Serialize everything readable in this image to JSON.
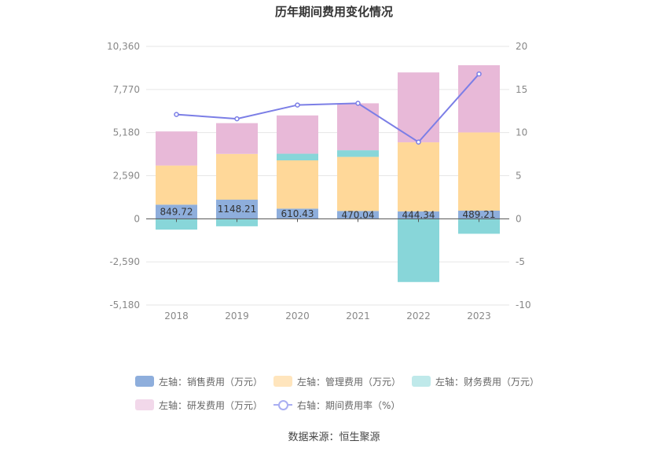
{
  "chart_data": {
    "type": "bar",
    "title": "历年期间费用变化情况",
    "categories": [
      "2018",
      "2019",
      "2020",
      "2021",
      "2022",
      "2023"
    ],
    "left_axis": {
      "ticks": [
        -5180,
        -2590,
        0,
        2590,
        5180,
        7770,
        10360
      ],
      "tick_labels": [
        "-5,180",
        "-2,590",
        "0",
        "2,590",
        "5,180",
        "7,770",
        "10,360"
      ],
      "range": [
        -5180,
        10360
      ]
    },
    "right_axis": {
      "ticks": [
        -10,
        -5,
        0,
        5,
        10,
        15,
        20
      ],
      "tick_labels": [
        "-10",
        "-5",
        "0",
        "5",
        "10",
        "15",
        "20"
      ],
      "range": [
        -10,
        20
      ]
    },
    "series": [
      {
        "name": "左轴：销售费用（万元）",
        "color": "#8eaedc",
        "values": [
          849.72,
          1148.21,
          610.43,
          470.04,
          444.34,
          489.21
        ],
        "labels": [
          "849.72",
          "1148.21",
          "610.43",
          "470.04",
          "444.34",
          "489.21"
        ]
      },
      {
        "name": "左轴：管理费用（万元）",
        "color": "#ffd899",
        "values": [
          2350,
          2750,
          2900,
          3250,
          4150,
          4700
        ]
      },
      {
        "name": "左轴：财务费用（万元）",
        "color": "#88d6d9",
        "values": [
          -650,
          -450,
          400,
          400,
          -3800,
          -900
        ]
      },
      {
        "name": "左轴：研发费用（万元）",
        "color": "#e8b9d8",
        "values": [
          2050,
          1850,
          2300,
          2820,
          4200,
          4040
        ]
      },
      {
        "name": "右轴：期间费用率（%）",
        "color": "#7b7ee6",
        "axis": "right",
        "type": "line",
        "values": [
          12.1,
          11.6,
          13.2,
          13.4,
          8.9,
          16.8
        ]
      }
    ],
    "legend_position": "bottom",
    "grid": true
  },
  "source": "数据来源：恒生聚源"
}
